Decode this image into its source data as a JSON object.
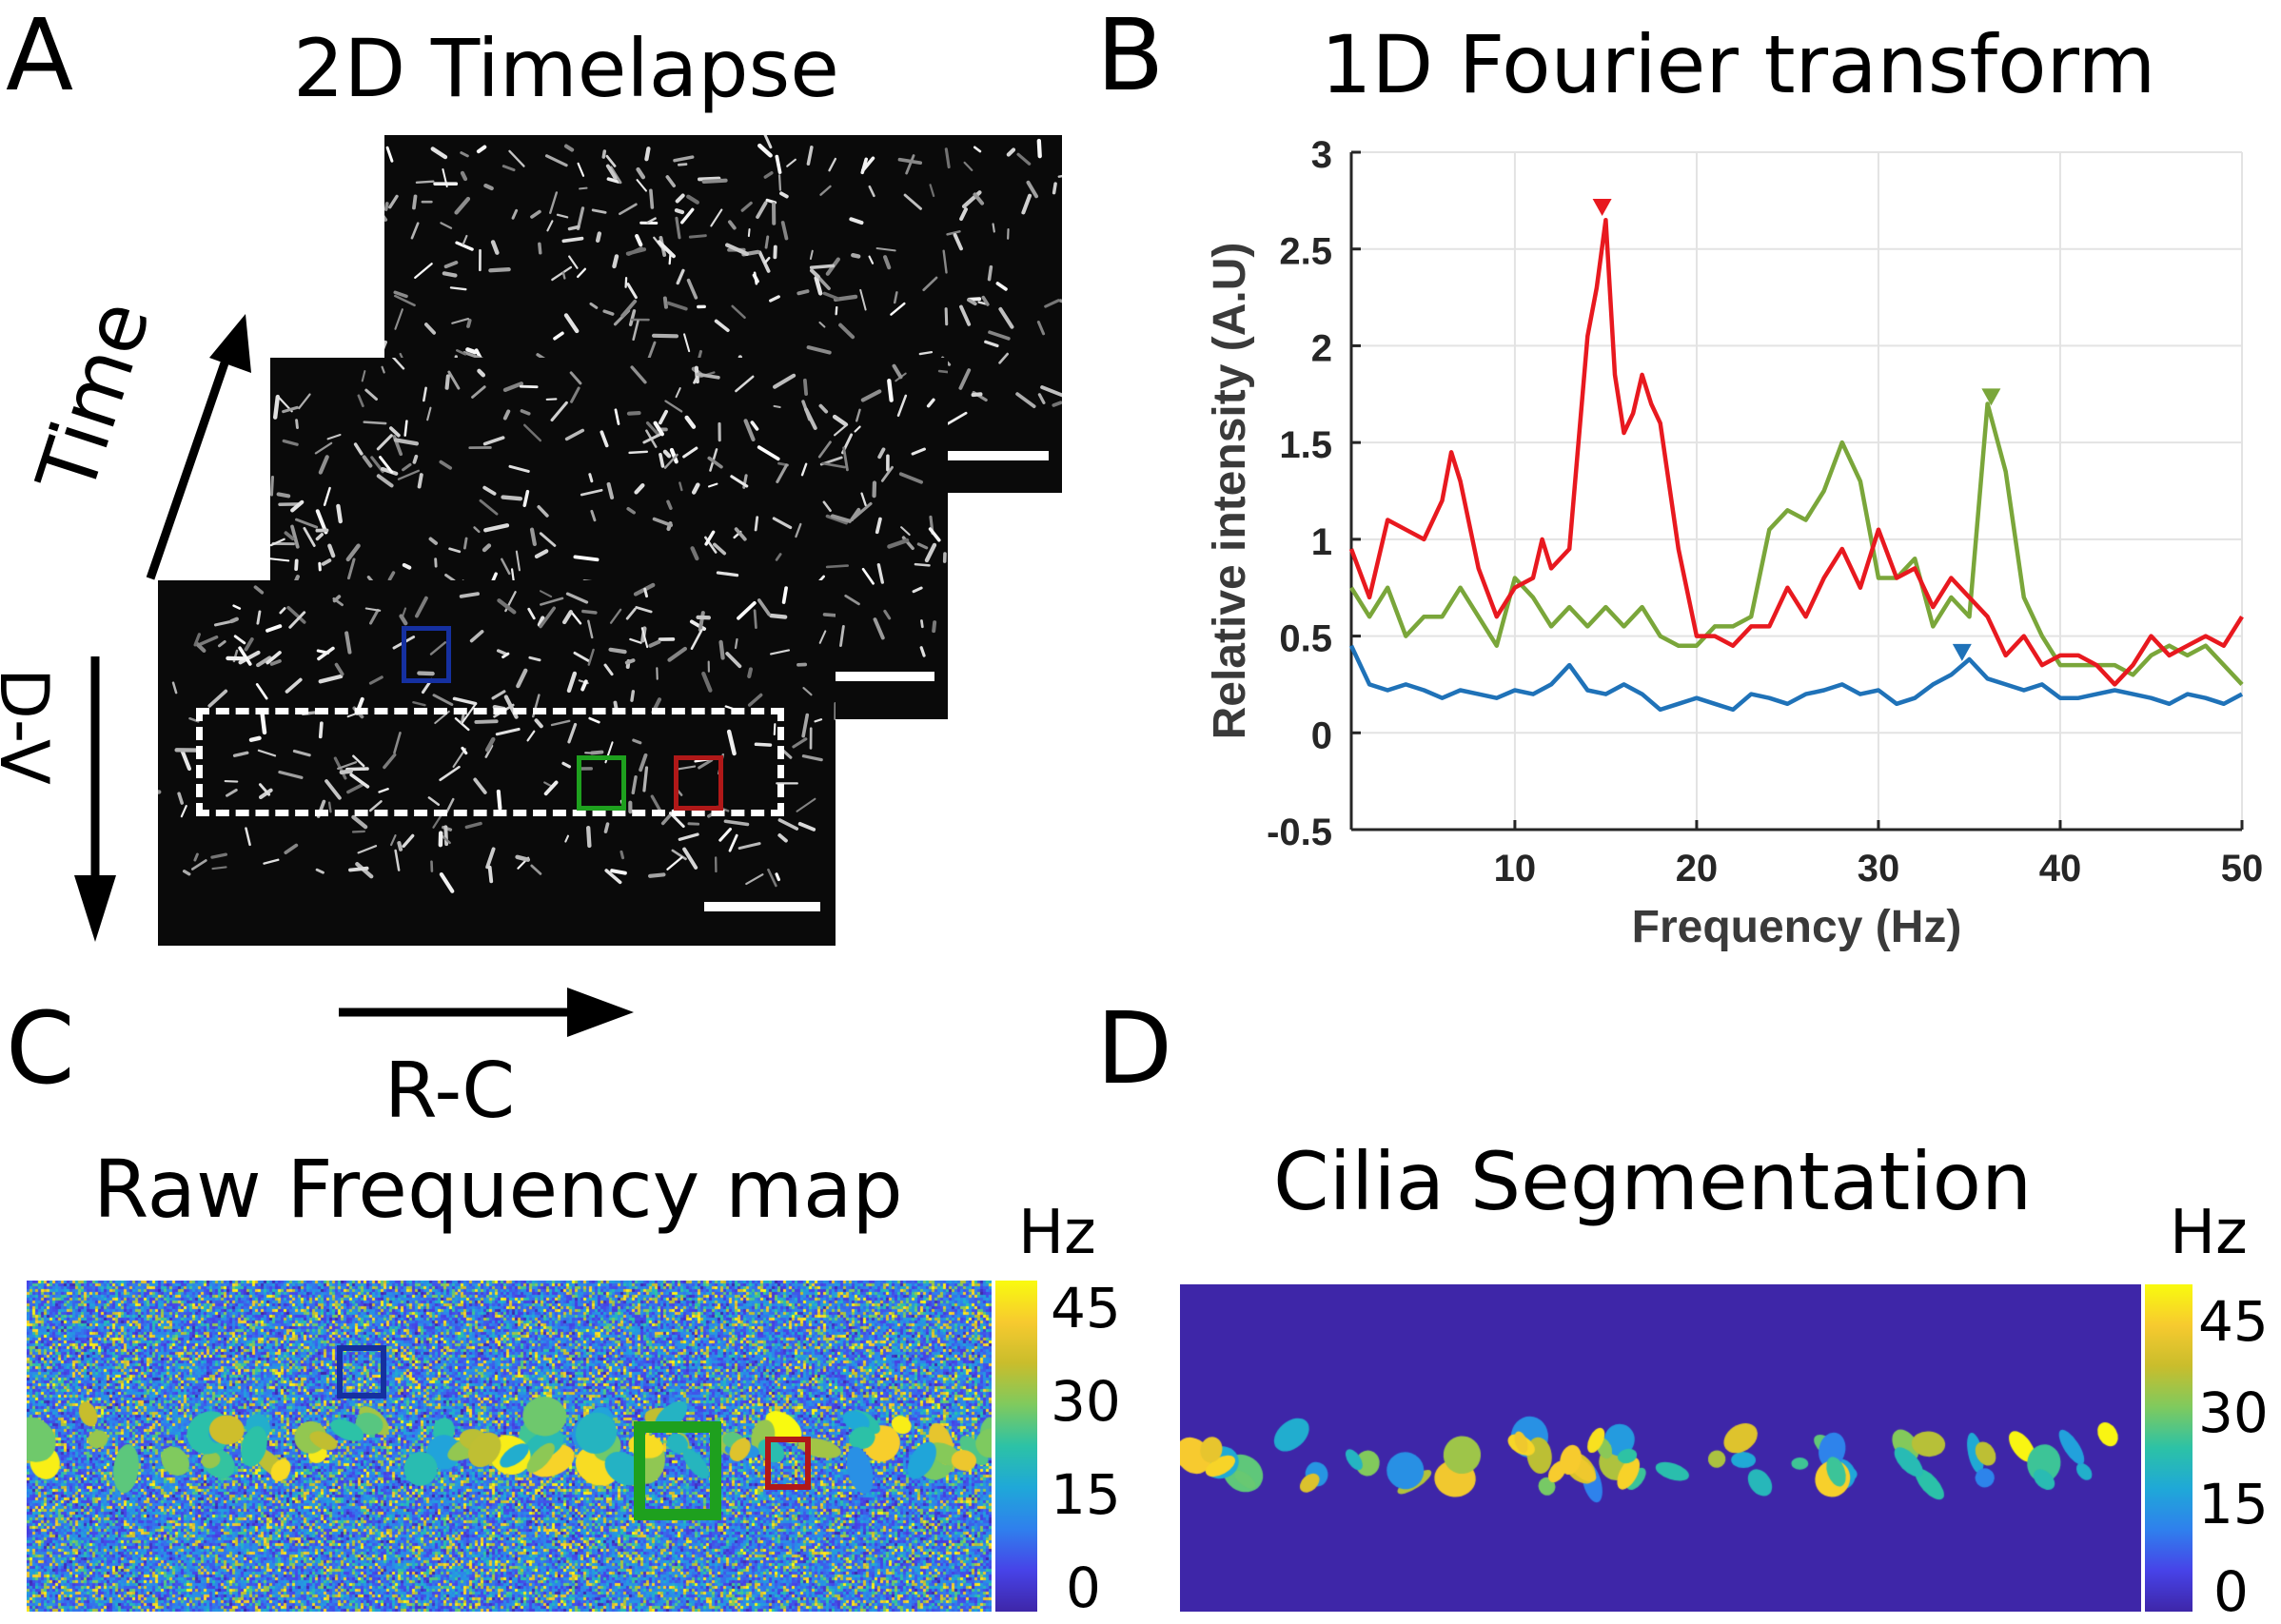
{
  "panels": {
    "a": {
      "letter": "A",
      "title": "2D Timelapse",
      "time_label": "Time",
      "dv_label": "D-V",
      "rc_label": "R-C"
    },
    "b": {
      "letter": "B",
      "title": "1D Fourier transform"
    },
    "c": {
      "letter": "C",
      "title": "Raw Frequency map",
      "unit": "Hz"
    },
    "d": {
      "letter": "D",
      "title": "Cilia Segmentation",
      "unit": "Hz"
    }
  },
  "colorbar": {
    "ticks": [
      "45",
      "30",
      "15",
      "0"
    ],
    "colormap": [
      "#3e26a8",
      "#4743e8",
      "#2f80ed",
      "#1fa8d8",
      "#2cc2a6",
      "#7fca5e",
      "#c9bd2c",
      "#f7ca2f",
      "#f9fb0e"
    ]
  },
  "roi_colors": {
    "blue": "#1530a0",
    "green": "#1ea01e",
    "red": "#b01818"
  },
  "chart_data": {
    "type": "line",
    "title": "1D Fourier transform",
    "xlabel": "Frequency (Hz)",
    "ylabel": "Relative intensity (A.U)",
    "xlim": [
      1,
      50
    ],
    "ylim": [
      -0.5,
      3
    ],
    "xticks": [
      "10",
      "20",
      "30",
      "40",
      "50"
    ],
    "yticks": [
      "3",
      "2.5",
      "2",
      "1.5",
      "1",
      "0.5",
      "0",
      "-0.5"
    ],
    "grid": true,
    "series": [
      {
        "color": "#e8191f",
        "x": [
          1,
          2,
          3,
          4,
          5,
          6,
          6.5,
          7,
          8,
          9,
          10,
          11,
          11.5,
          12,
          13,
          14,
          14.5,
          15,
          15.5,
          16,
          16.5,
          17,
          17.5,
          18,
          19,
          20,
          21,
          22,
          23,
          24,
          25,
          26,
          27,
          28,
          29,
          30,
          31,
          32,
          33,
          34,
          35,
          36,
          37,
          38,
          39,
          40,
          41,
          42,
          43,
          44,
          45,
          46,
          47,
          48,
          49,
          50
        ],
        "y": [
          0.95,
          0.7,
          1.1,
          1.05,
          1.0,
          1.2,
          1.45,
          1.3,
          0.85,
          0.6,
          0.75,
          0.8,
          1.0,
          0.85,
          0.95,
          2.05,
          2.3,
          2.65,
          1.85,
          1.55,
          1.65,
          1.85,
          1.7,
          1.6,
          0.95,
          0.5,
          0.5,
          0.45,
          0.55,
          0.55,
          0.75,
          0.6,
          0.8,
          0.95,
          0.75,
          1.05,
          0.8,
          0.85,
          0.65,
          0.8,
          0.7,
          0.6,
          0.4,
          0.5,
          0.35,
          0.4,
          0.4,
          0.35,
          0.25,
          0.35,
          0.5,
          0.4,
          0.45,
          0.5,
          0.45,
          0.6
        ]
      },
      {
        "color": "#7aa63a",
        "x": [
          1,
          2,
          3,
          4,
          5,
          6,
          7,
          8,
          9,
          10,
          11,
          12,
          13,
          14,
          15,
          16,
          17,
          18,
          19,
          20,
          21,
          22,
          23,
          24,
          25,
          26,
          27,
          28,
          29,
          30,
          31,
          32,
          33,
          34,
          35,
          36,
          37,
          38,
          39,
          40,
          41,
          42,
          43,
          44,
          45,
          46,
          47,
          48,
          49,
          50
        ],
        "y": [
          0.75,
          0.6,
          0.75,
          0.5,
          0.6,
          0.6,
          0.75,
          0.6,
          0.45,
          0.8,
          0.7,
          0.55,
          0.65,
          0.55,
          0.65,
          0.55,
          0.65,
          0.5,
          0.45,
          0.45,
          0.55,
          0.55,
          0.6,
          1.05,
          1.15,
          1.1,
          1.25,
          1.5,
          1.3,
          0.8,
          0.8,
          0.9,
          0.55,
          0.7,
          0.6,
          1.7,
          1.35,
          0.7,
          0.5,
          0.35,
          0.35,
          0.35,
          0.35,
          0.3,
          0.4,
          0.45,
          0.4,
          0.45,
          0.35,
          0.25
        ]
      },
      {
        "color": "#1f72b8",
        "x": [
          1,
          2,
          3,
          4,
          5,
          6,
          7,
          8,
          9,
          10,
          11,
          12,
          13,
          14,
          15,
          16,
          17,
          18,
          19,
          20,
          21,
          22,
          23,
          24,
          25,
          26,
          27,
          28,
          29,
          30,
          31,
          32,
          33,
          34,
          35,
          36,
          37,
          38,
          39,
          40,
          41,
          42,
          43,
          44,
          45,
          46,
          47,
          48,
          49,
          50
        ],
        "y": [
          0.45,
          0.25,
          0.22,
          0.25,
          0.22,
          0.18,
          0.22,
          0.2,
          0.18,
          0.22,
          0.2,
          0.25,
          0.35,
          0.22,
          0.2,
          0.25,
          0.2,
          0.12,
          0.15,
          0.18,
          0.15,
          0.12,
          0.2,
          0.18,
          0.15,
          0.2,
          0.22,
          0.25,
          0.2,
          0.22,
          0.15,
          0.18,
          0.25,
          0.3,
          0.38,
          0.28,
          0.25,
          0.22,
          0.25,
          0.18,
          0.18,
          0.2,
          0.22,
          0.2,
          0.18,
          0.15,
          0.2,
          0.18,
          0.15,
          0.2
        ]
      }
    ],
    "peak_markers": [
      {
        "x": 14.8,
        "y": 2.7,
        "color": "#e8191f"
      },
      {
        "x": 36.2,
        "y": 1.72,
        "color": "#7aa63a"
      },
      {
        "x": 34.6,
        "y": 0.4,
        "color": "#1f72b8"
      }
    ]
  }
}
